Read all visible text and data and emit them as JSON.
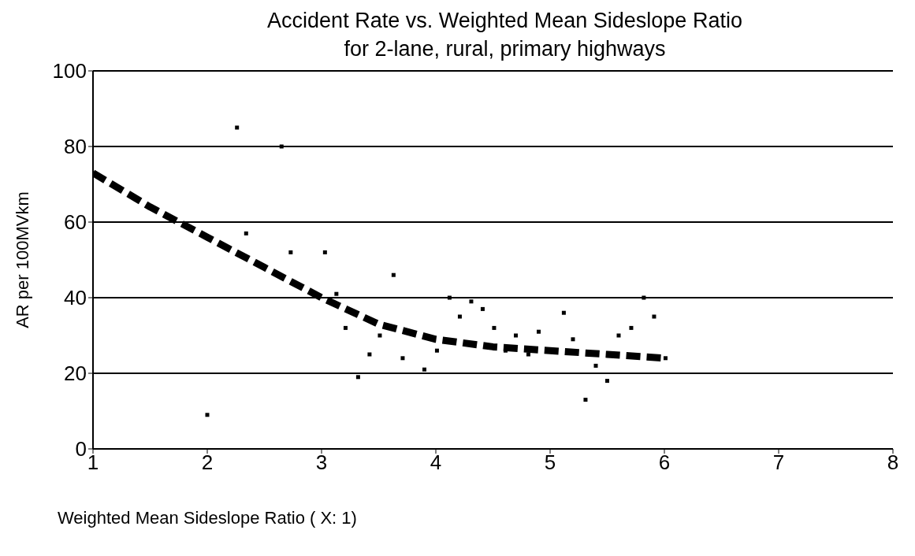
{
  "chart_data": {
    "type": "scatter",
    "title": "Accident Rate vs. Weighted Mean Sideslope Ratio",
    "subtitle": "for 2-lane, rural, primary highways",
    "xlabel": "Weighted Mean Sideslope Ratio ( X: 1)",
    "ylabel": "AR per 100MVkm",
    "xlim": [
      1,
      8
    ],
    "xticks": [
      1,
      2,
      3,
      4,
      5,
      6,
      7,
      8
    ],
    "ylim": [
      0,
      100
    ],
    "yticks": [
      0,
      20,
      40,
      60,
      80,
      100
    ],
    "grid": "y",
    "series": [
      {
        "color": "#000000",
        "marker": "square",
        "x": [
          2.0,
          2.26,
          2.34,
          2.65,
          2.73,
          3.03,
          3.13,
          3.21,
          3.32,
          3.42,
          3.51,
          3.63,
          3.71,
          3.9,
          4.01,
          4.12,
          4.21,
          4.31,
          4.41,
          4.51,
          4.61,
          4.7,
          4.81,
          4.9,
          5.12,
          5.2,
          5.31,
          5.4,
          5.5,
          5.6,
          5.71,
          5.82,
          5.91,
          6.01
        ],
        "values": [
          9,
          85,
          57,
          80,
          52,
          52,
          41,
          32,
          19,
          25,
          30,
          46,
          24,
          21,
          26,
          40,
          35,
          39,
          37,
          32,
          26,
          30,
          25,
          31,
          36,
          29,
          13,
          22,
          18,
          30,
          32,
          40,
          35,
          24
        ]
      },
      {
        "type": "line",
        "color": "#000000",
        "line_style": "dashed",
        "marker": "none",
        "x": [
          1,
          1.5,
          2,
          2.5,
          3,
          3.5,
          4,
          4.5,
          5,
          5.5,
          6
        ],
        "values": [
          73,
          64,
          56,
          48,
          40,
          33,
          29,
          27,
          26,
          25,
          24
        ]
      }
    ]
  }
}
